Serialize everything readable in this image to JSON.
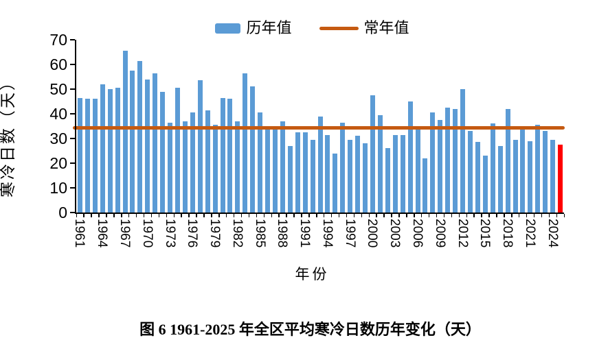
{
  "caption": "图 6  1961-2025 年全区平均寒冷日数历年变化（天）",
  "legend": {
    "items": [
      {
        "label": "历年值",
        "type": "bar",
        "color": "#5B9BD5"
      },
      {
        "label": "常年值",
        "type": "line",
        "color": "#C55A11"
      }
    ]
  },
  "chart_data": {
    "type": "bar",
    "title": "",
    "xlabel": "年份",
    "ylabel": "寒冷日数（天）",
    "ylim": [
      0,
      70
    ],
    "yticks": [
      0,
      10,
      20,
      30,
      40,
      50,
      60,
      70
    ],
    "grid": false,
    "legend_position": "top",
    "categories": [
      1961,
      1962,
      1963,
      1964,
      1965,
      1966,
      1967,
      1968,
      1969,
      1970,
      1971,
      1972,
      1973,
      1974,
      1975,
      1976,
      1977,
      1978,
      1979,
      1980,
      1981,
      1982,
      1983,
      1984,
      1985,
      1986,
      1987,
      1988,
      1989,
      1990,
      1991,
      1992,
      1993,
      1994,
      1995,
      1996,
      1997,
      1998,
      1999,
      2000,
      2001,
      2002,
      2003,
      2004,
      2005,
      2006,
      2007,
      2008,
      2009,
      2010,
      2011,
      2012,
      2013,
      2014,
      2015,
      2016,
      2017,
      2018,
      2019,
      2020,
      2021,
      2022,
      2023,
      2024,
      2025
    ],
    "x_axis_labeled_years": [
      1961,
      1964,
      1967,
      1970,
      1973,
      1976,
      1979,
      1982,
      1985,
      1988,
      1991,
      1994,
      1997,
      2000,
      2003,
      2006,
      2009,
      2012,
      2015,
      2018,
      2021,
      2024
    ],
    "series": [
      {
        "name": "历年值",
        "type": "bar",
        "color": "#5B9BD5",
        "values": [
          46.5,
          46,
          46,
          52,
          50,
          50.5,
          65.5,
          57.5,
          61.5,
          54,
          56.5,
          49,
          36.5,
          50.5,
          37,
          40.5,
          53.5,
          41.5,
          35.5,
          46.5,
          46,
          37,
          56.5,
          51,
          40.5,
          35,
          35,
          37,
          27,
          32.5,
          32.5,
          29.5,
          39,
          31.5,
          24,
          36.5,
          29.5,
          31,
          28,
          47.5,
          39.5,
          26,
          31.5,
          31.5,
          45,
          33.5,
          22,
          40.5,
          37.5,
          42.5,
          42,
          50,
          33,
          28.5,
          23,
          36,
          27,
          42,
          29.5,
          34,
          29,
          35.5,
          33,
          29.5,
          27.5
        ]
      },
      {
        "name": "常年值",
        "type": "hline",
        "color": "#C55A11",
        "value": 34.4
      }
    ],
    "highlight": {
      "year": 2025,
      "color": "#FF0000"
    }
  }
}
